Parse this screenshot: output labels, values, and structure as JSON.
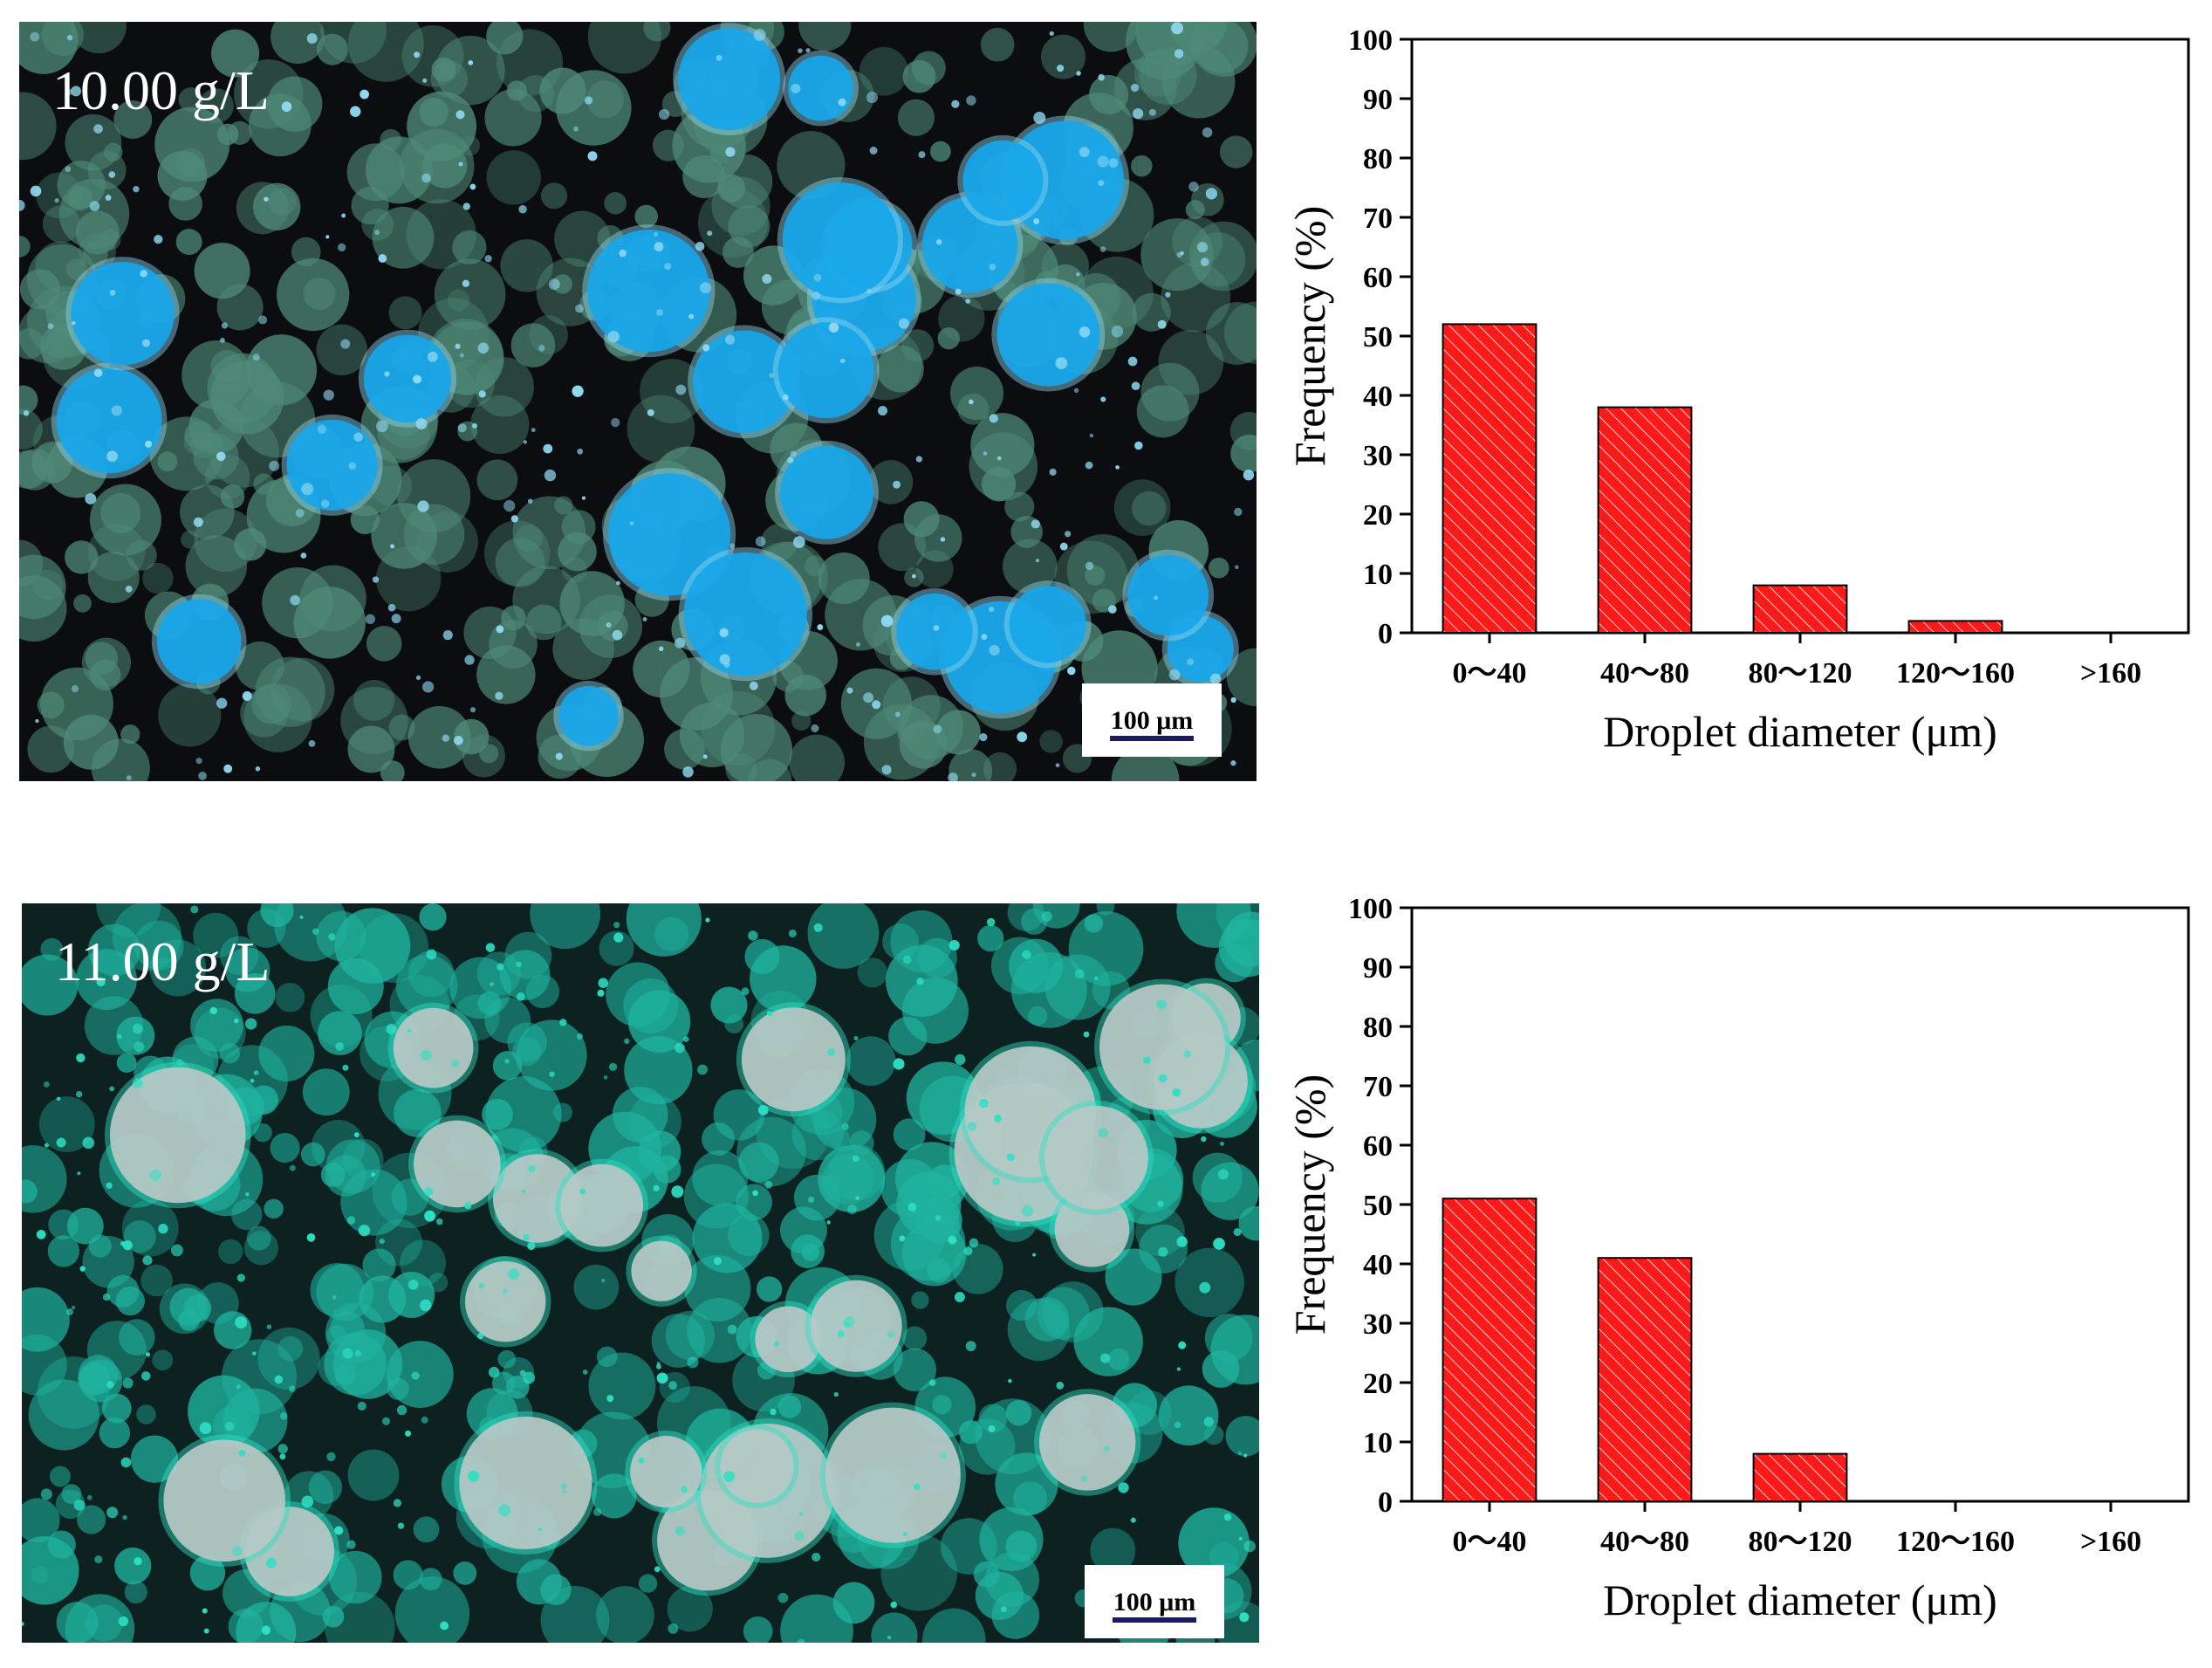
{
  "panels": [
    {
      "id": "top",
      "micrograph": {
        "concentration_label": "10.00 g/L",
        "scale_bar_label": "100 μm",
        "palette": {
          "background": "#0b0d10",
          "droplet": "#4f8a78",
          "droplet_bright": "#17a6ea",
          "edge": "#8ed8f0"
        }
      }
    },
    {
      "id": "bottom",
      "micrograph": {
        "concentration_label": "11.00 g/L",
        "scale_bar_label": "100 μm",
        "palette": {
          "background": "#0d2120",
          "droplet": "#1fb39f",
          "droplet_bright": "#b7c8c6",
          "edge": "#2ee0c4"
        }
      }
    }
  ],
  "chart_data": [
    {
      "type": "bar",
      "categories": [
        "0～40",
        "40～80",
        "80～120",
        "120～160",
        ">160"
      ],
      "values": [
        52,
        38,
        8,
        2,
        0
      ],
      "xlabel": "Droplet diameter (μm)",
      "ylabel": "Frequency (%)",
      "ylim": [
        0,
        100
      ],
      "yticks": [
        0,
        10,
        20,
        30,
        40,
        50,
        60,
        70,
        80,
        90,
        100
      ],
      "bar_color": "#ff1a1a",
      "bar_hatch": "diagonal",
      "grid": false,
      "legend": false
    },
    {
      "type": "bar",
      "categories": [
        "0～40",
        "40～80",
        "80～120",
        "120～160",
        ">160"
      ],
      "values": [
        51,
        41,
        8,
        0,
        0
      ],
      "xlabel": "Droplet diameter (μm)",
      "ylabel": "Frequency (%)",
      "ylim": [
        0,
        100
      ],
      "yticks": [
        0,
        10,
        20,
        30,
        40,
        50,
        60,
        70,
        80,
        90,
        100
      ],
      "bar_color": "#ff1a1a",
      "bar_hatch": "diagonal",
      "grid": false,
      "legend": false
    }
  ]
}
